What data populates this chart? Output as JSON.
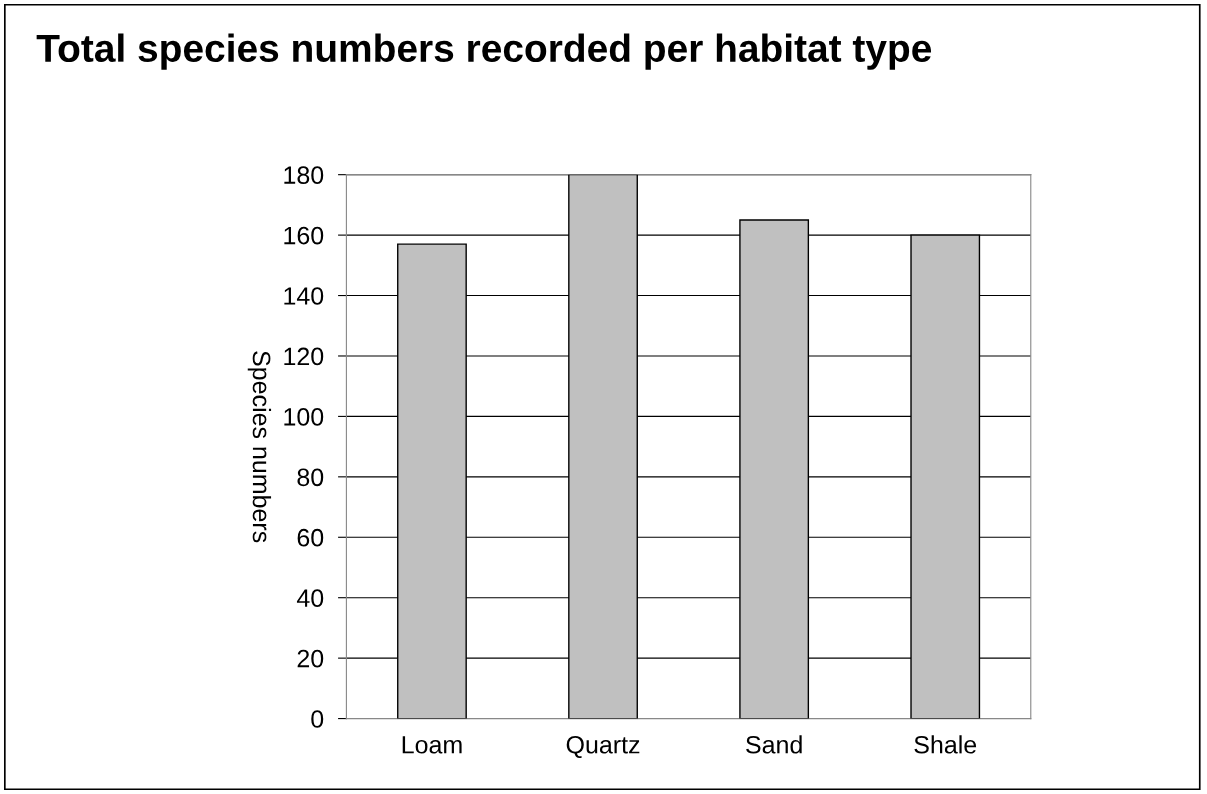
{
  "chart_data": {
    "type": "bar",
    "title": "Total species numbers recorded per habitat type",
    "ylabel": "Species numbers",
    "categories": [
      "Loam",
      "Quartz",
      "Sand",
      "Shale"
    ],
    "values": [
      157,
      180,
      165,
      160
    ],
    "color": "#c0c0c0",
    "ylim": [
      0,
      180
    ],
    "yticks": [
      0,
      20,
      40,
      60,
      80,
      100,
      120,
      140,
      160,
      180
    ],
    "grid": "y",
    "legend": false
  }
}
